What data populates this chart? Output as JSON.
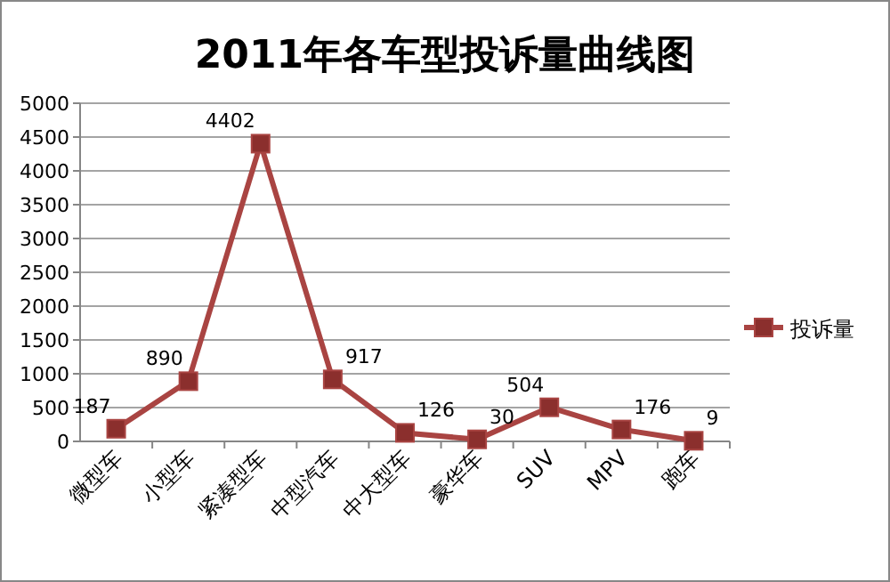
{
  "chart_data": {
    "type": "line",
    "title": "2011年各车型投诉量曲线图",
    "categories": [
      "微型车",
      "小型车",
      "紧凑型车",
      "中型汽车",
      "中大型车",
      "豪华车",
      "SUV",
      "MPV",
      "跑车"
    ],
    "series": [
      {
        "name": "投诉量",
        "color": "#a94442",
        "values": [
          187,
          890,
          4402,
          917,
          126,
          30,
          504,
          176,
          9
        ]
      }
    ],
    "ylim": [
      0,
      5000
    ],
    "yticks": [
      0,
      500,
      1000,
      1500,
      2000,
      2500,
      3000,
      3500,
      4000,
      4500,
      5000
    ],
    "grid": "y",
    "legend": "right",
    "marker": "square",
    "data_labels": true
  }
}
